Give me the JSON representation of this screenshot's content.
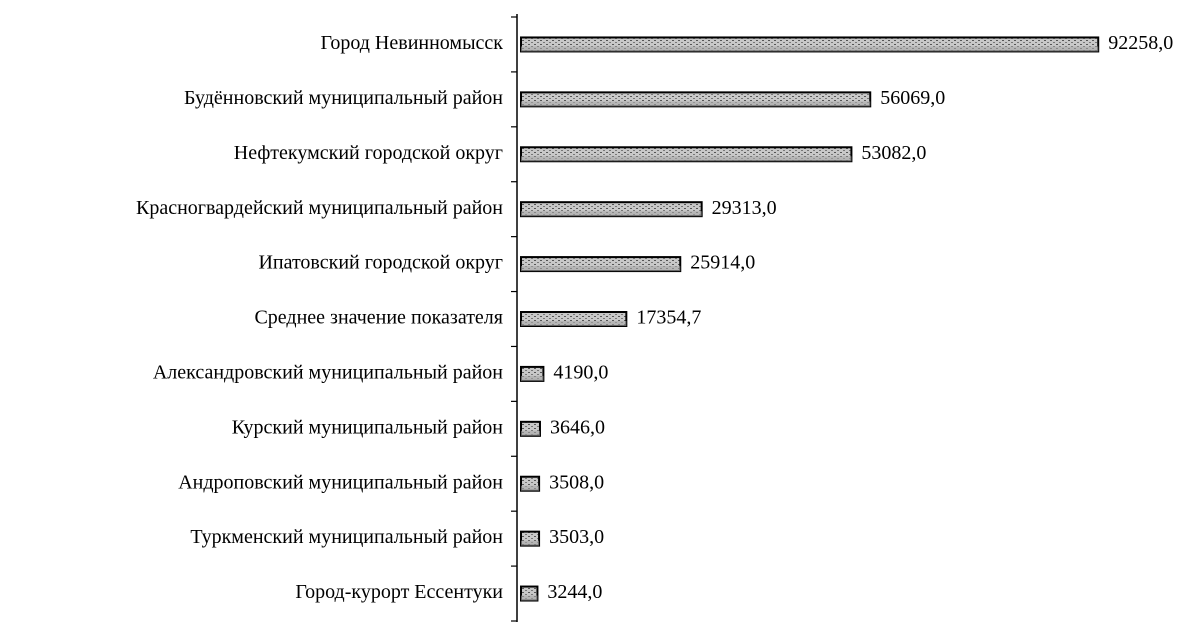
{
  "chart_data": {
    "type": "bar",
    "orientation": "horizontal",
    "categories": [
      "Город Невинномысск",
      "Будённовский муниципальный район",
      "Нефтекумский городской округ",
      "Красногвардейский муниципальный район",
      "Ипатовский городской округ",
      "Среднее значение показателя",
      "Александровский муниципальный район",
      "Курский муниципальный район",
      "Андроповский муниципальный район",
      "Туркменский муниципальный район",
      "Город-курорт Ессентуки"
    ],
    "values": [
      92258.0,
      56069.0,
      53082.0,
      29313.0,
      25914.0,
      17354.7,
      4190.0,
      3646.0,
      3508.0,
      3503.0,
      3244.0
    ],
    "value_labels": [
      "92258,0",
      "56069,0",
      "53082,0",
      "29313,0",
      "25914,0",
      "17354,7",
      "4190,0",
      "3646,0",
      "3508,0",
      "3503,0",
      "3244,0"
    ],
    "color": "#a8a8a8",
    "xlim": [
      0,
      100000
    ]
  }
}
